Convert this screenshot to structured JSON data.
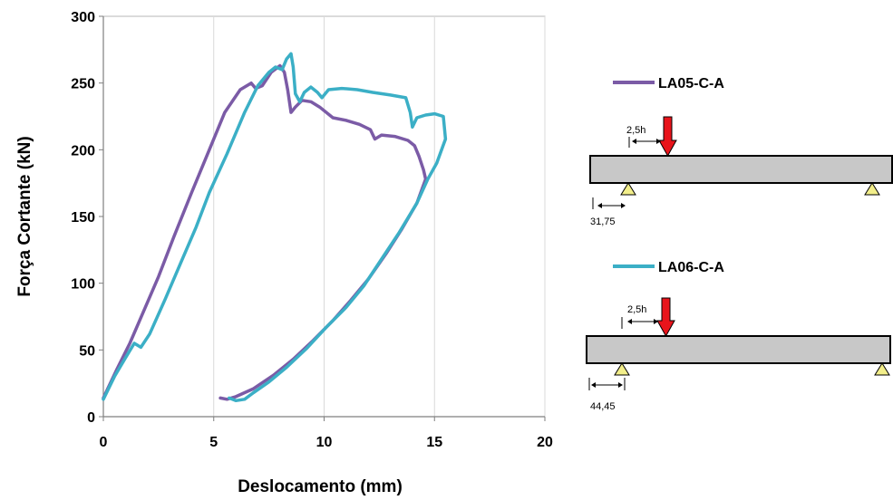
{
  "chart_data": {
    "type": "line",
    "xlabel": "Deslocamento (mm)",
    "ylabel": "Força Cortante (kN)",
    "xlim": [
      0,
      20
    ],
    "ylim": [
      0,
      300
    ],
    "x_ticks": [
      "0",
      "5",
      "10",
      "15",
      "20"
    ],
    "y_ticks": [
      "0",
      "50",
      "100",
      "150",
      "200",
      "250",
      "300"
    ],
    "grid": "vertical",
    "legend_position": "right",
    "series": [
      {
        "name": "LA05-C-A",
        "color": "#7B5BA6",
        "points": [
          [
            0,
            14
          ],
          [
            0.6,
            35
          ],
          [
            1.2,
            55
          ],
          [
            1.8,
            78
          ],
          [
            2.5,
            105
          ],
          [
            3.2,
            135
          ],
          [
            4.0,
            168
          ],
          [
            4.8,
            200
          ],
          [
            5.5,
            228
          ],
          [
            6.2,
            245
          ],
          [
            6.7,
            250
          ],
          [
            6.9,
            246
          ],
          [
            7.2,
            248
          ],
          [
            7.6,
            258
          ],
          [
            8.0,
            263
          ],
          [
            8.2,
            258
          ],
          [
            8.35,
            245
          ],
          [
            8.5,
            228
          ],
          [
            8.7,
            232
          ],
          [
            9.0,
            237
          ],
          [
            9.4,
            236
          ],
          [
            9.8,
            232
          ],
          [
            10.4,
            224
          ],
          [
            11.0,
            222
          ],
          [
            11.6,
            219
          ],
          [
            12.1,
            215
          ],
          [
            12.3,
            208
          ],
          [
            12.6,
            211
          ],
          [
            13.2,
            210
          ],
          [
            13.8,
            207
          ],
          [
            14.1,
            203
          ],
          [
            14.3,
            195
          ],
          [
            14.5,
            185
          ],
          [
            14.6,
            178
          ],
          [
            14.2,
            160
          ],
          [
            13.5,
            140
          ],
          [
            12.8,
            122
          ],
          [
            12.0,
            103
          ],
          [
            11.2,
            87
          ],
          [
            10.4,
            72
          ],
          [
            9.5,
            57
          ],
          [
            8.6,
            43
          ],
          [
            7.7,
            31
          ],
          [
            6.8,
            21
          ],
          [
            6.0,
            15
          ],
          [
            5.6,
            13
          ],
          [
            5.3,
            14
          ]
        ]
      },
      {
        "name": "LA06-C-A",
        "color": "#3BAFC6",
        "points": [
          [
            0,
            13
          ],
          [
            0.5,
            30
          ],
          [
            1.0,
            44
          ],
          [
            1.4,
            55
          ],
          [
            1.7,
            52
          ],
          [
            2.1,
            62
          ],
          [
            2.8,
            88
          ],
          [
            3.5,
            115
          ],
          [
            4.2,
            142
          ],
          [
            4.8,
            168
          ],
          [
            5.6,
            197
          ],
          [
            6.4,
            228
          ],
          [
            7.0,
            248
          ],
          [
            7.5,
            258
          ],
          [
            7.8,
            262
          ],
          [
            8.1,
            260
          ],
          [
            8.3,
            268
          ],
          [
            8.5,
            272
          ],
          [
            8.6,
            262
          ],
          [
            8.7,
            242
          ],
          [
            8.9,
            236
          ],
          [
            9.1,
            243
          ],
          [
            9.4,
            247
          ],
          [
            9.7,
            243
          ],
          [
            9.9,
            239
          ],
          [
            10.2,
            245
          ],
          [
            10.8,
            246
          ],
          [
            11.5,
            245
          ],
          [
            12.2,
            243
          ],
          [
            13.0,
            241
          ],
          [
            13.7,
            239
          ],
          [
            13.9,
            228
          ],
          [
            14.0,
            217
          ],
          [
            14.2,
            224
          ],
          [
            14.6,
            226
          ],
          [
            15.0,
            227
          ],
          [
            15.4,
            225
          ],
          [
            15.5,
            208
          ],
          [
            15.1,
            190
          ],
          [
            14.7,
            178
          ],
          [
            14.2,
            160
          ],
          [
            13.4,
            138
          ],
          [
            12.6,
            118
          ],
          [
            11.8,
            98
          ],
          [
            11.0,
            82
          ],
          [
            10.1,
            67
          ],
          [
            9.2,
            51
          ],
          [
            8.3,
            37
          ],
          [
            7.5,
            26
          ],
          [
            6.8,
            18
          ],
          [
            6.4,
            13
          ],
          [
            6.0,
            12
          ],
          [
            5.7,
            14
          ]
        ]
      }
    ]
  },
  "diagrams": [
    {
      "legend_label": "LA05-C-A",
      "load_distance_label": "2,5h",
      "support_distance_label": "31,75"
    },
    {
      "legend_label": "LA06-C-A",
      "load_distance_label": "2,5h",
      "support_distance_label": "44,45"
    }
  ],
  "colors": {
    "beam_fill": "#C8C8C8",
    "support_fill": "#F2EE8A",
    "load_arrow": "#E8141B"
  }
}
